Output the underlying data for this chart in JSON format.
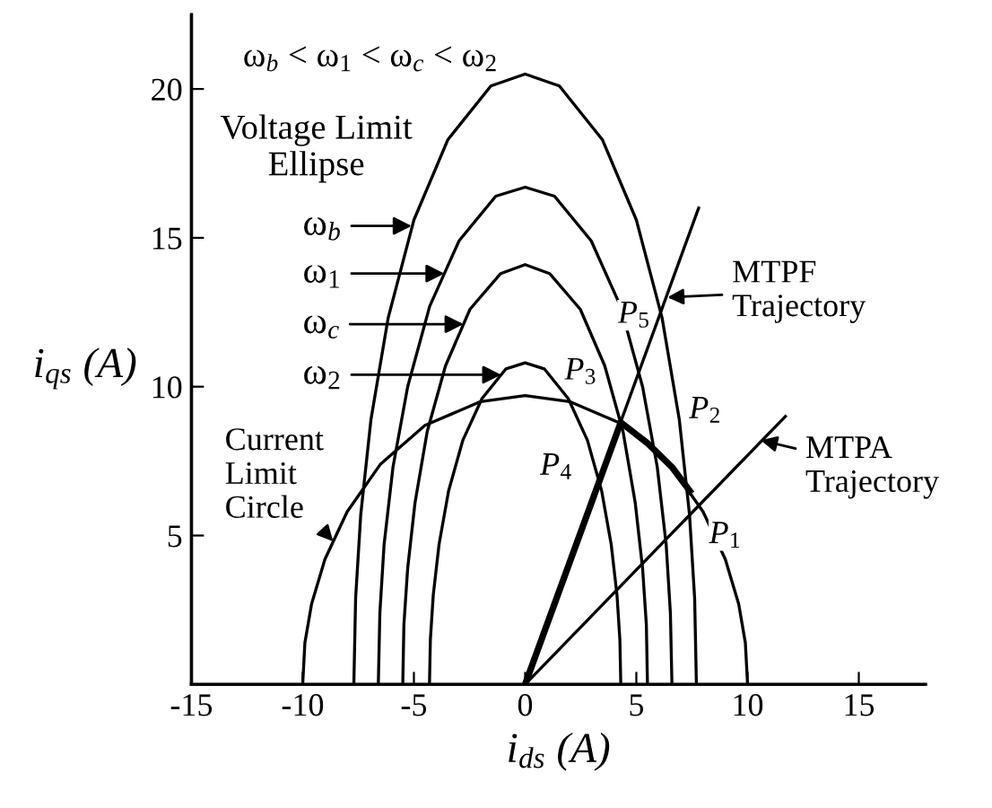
{
  "chart_data": {
    "type": "line",
    "xlabel": "i$_{ds}$ (A)",
    "ylabel": "i$_{qs}$ (A)",
    "xlim": [
      -15,
      18
    ],
    "xticks": [
      -15,
      -10,
      -5,
      0,
      5,
      10,
      15
    ],
    "ylim": [
      0,
      22.5
    ],
    "yticks": [
      5,
      10,
      15,
      20
    ],
    "grid": false,
    "marker": "none",
    "line_style": "solid",
    "series": [
      {
        "color": "#000000",
        "x": [
          -7.7,
          -7.62,
          -7.39,
          -6.93,
          -6.16,
          -5.0,
          -3.47,
          -1.54,
          0,
          1.54,
          3.47,
          5.0,
          6.16,
          6.93,
          7.39,
          7.62,
          7.7
        ],
        "values": [
          0,
          2.9,
          5.7,
          8.9,
          12.3,
          15.6,
          18.3,
          20.1,
          20.5,
          20.1,
          18.3,
          15.6,
          12.3,
          8.9,
          5.7,
          2.9,
          0
        ]
      },
      {
        "color": "#000000",
        "x": [
          -6.6,
          -6.53,
          -6.34,
          -5.94,
          -5.28,
          -4.29,
          -2.97,
          -1.32,
          0,
          1.32,
          2.97,
          4.29,
          5.28,
          5.94,
          6.34,
          6.53,
          6.6
        ],
        "values": [
          0,
          2.4,
          4.7,
          7.3,
          10.0,
          12.7,
          14.9,
          16.4,
          16.7,
          16.4,
          14.9,
          12.7,
          10.0,
          7.3,
          4.7,
          2.4,
          0
        ]
      },
      {
        "color": "#000000",
        "x": [
          -5.5,
          -5.45,
          -5.28,
          -4.95,
          -4.4,
          -3.58,
          -2.48,
          -1.1,
          0,
          1.1,
          2.48,
          3.58,
          4.4,
          4.95,
          5.28,
          5.45,
          5.5
        ],
        "values": [
          0,
          2.0,
          3.9,
          6.1,
          8.5,
          10.7,
          12.6,
          13.8,
          14.1,
          13.8,
          12.6,
          10.7,
          8.5,
          6.1,
          3.9,
          2.0,
          0
        ]
      },
      {
        "color": "#000000",
        "x": [
          -4.3,
          -4.26,
          -4.13,
          -3.87,
          -3.44,
          -2.8,
          -1.94,
          -0.86,
          0,
          0.86,
          1.94,
          2.8,
          3.44,
          3.87,
          4.13,
          4.26,
          4.3
        ],
        "values": [
          0,
          1.5,
          3.0,
          4.7,
          6.5,
          8.2,
          9.6,
          10.6,
          10.8,
          10.6,
          9.6,
          8.2,
          6.5,
          4.7,
          3.0,
          1.5,
          0
        ]
      },
      {
        "color": "#000000",
        "x": [
          -10,
          -9.9,
          -9.6,
          -9,
          -8,
          -6.5,
          -4.5,
          -2,
          0,
          2,
          4.5,
          6.5,
          8,
          9,
          9.6,
          9.9,
          10
        ],
        "values": [
          0,
          1.4,
          2.7,
          4.2,
          5.8,
          7.4,
          8.7,
          9.5,
          9.7,
          9.5,
          8.7,
          7.4,
          5.8,
          4.2,
          2.7,
          1.4,
          0
        ]
      },
      {
        "color": "#000000",
        "x": [
          0,
          11.7
        ],
        "values": [
          0,
          9.0
        ]
      },
      {
        "color": "#000000",
        "x": [
          0,
          7.8
        ],
        "values": [
          0,
          16.0
        ]
      },
      {
        "color": "#000000",
        "x": [
          7.4,
          6.6,
          5.5,
          4.3,
          0
        ],
        "values": [
          6.5,
          7.3,
          8.1,
          8.8,
          0
        ]
      }
    ],
    "annotations": [
      "ω$_{b}$ < ω$_{1}$ < ω$_{c}$ < ω$_{2}$",
      "Voltage Limit\nEllipse",
      {
        "text": "ω$_{b}$",
        "x": -5.1,
        "y": 15.4
      },
      {
        "text": "ω$_{1}$",
        "x": -3.63,
        "y": 13.8
      },
      "ω$_{c}$",
      "ω$_{2}$",
      {
        "text": "Current\nLimit\nCircle",
        "x": -8.63,
        "y": 4.8
      },
      {
        "text": "MTPF\nTrajectory",
        "x": 6.4,
        "y": 13.0
      },
      {
        "text": "MTPA\nTrajectory",
        "x": 10.6,
        "y": 8.2
      },
      "P$_{1}$",
      "P$_{2}$",
      "P$_{3}$",
      "P$_{4}$",
      "P$_{5}$"
    ]
  }
}
